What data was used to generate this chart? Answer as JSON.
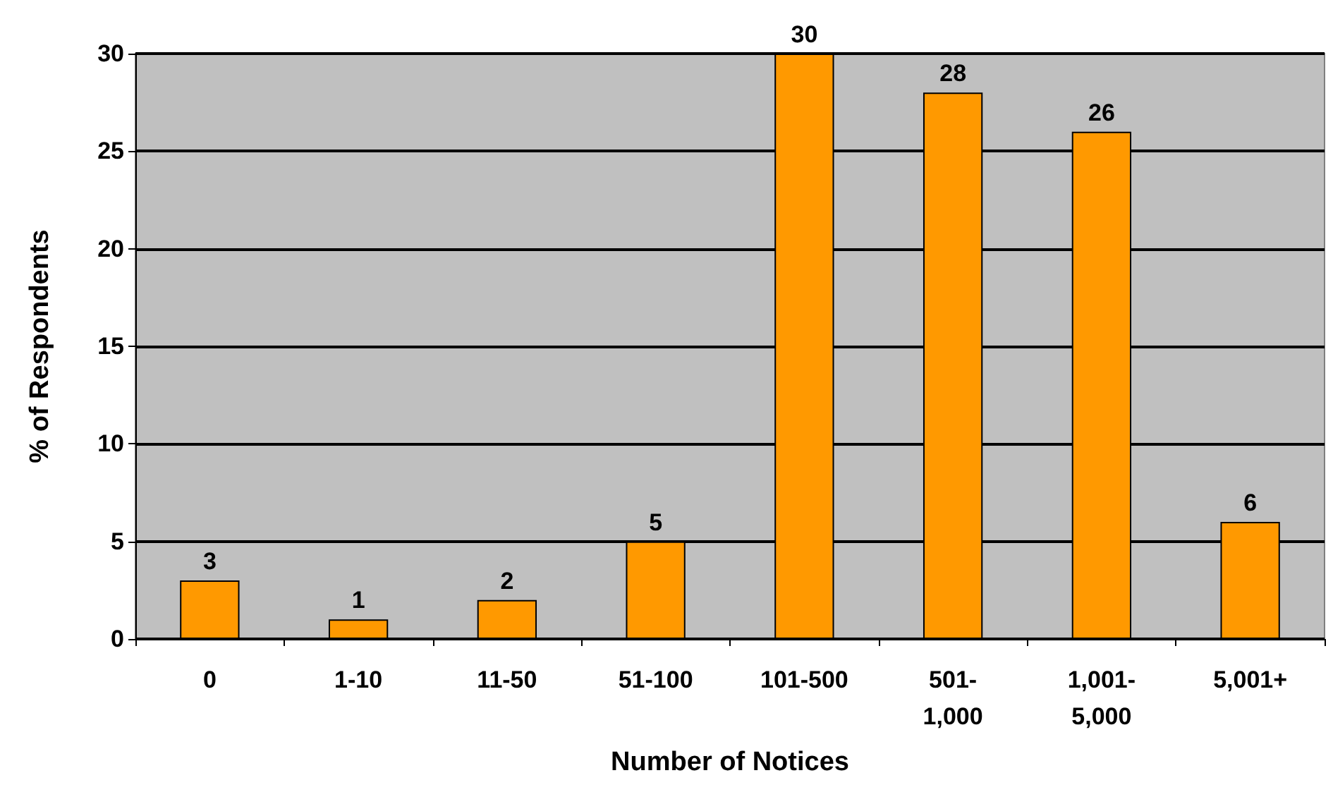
{
  "chart_data": {
    "type": "bar",
    "xlabel": "Number of Notices",
    "ylabel": "% of Respondents",
    "categories": [
      "0",
      "1-10",
      "11-50",
      "51-100",
      "101-500",
      "501-1,000",
      "1,001-5,000",
      "5,001+"
    ],
    "values": [
      3,
      1,
      2,
      5,
      30,
      28,
      26,
      6
    ],
    "color": "#ff9900",
    "ylim": [
      0,
      30
    ],
    "yticks": [
      0,
      5,
      10,
      15,
      20,
      25,
      30
    ],
    "grid": "y",
    "data_labels": true
  }
}
